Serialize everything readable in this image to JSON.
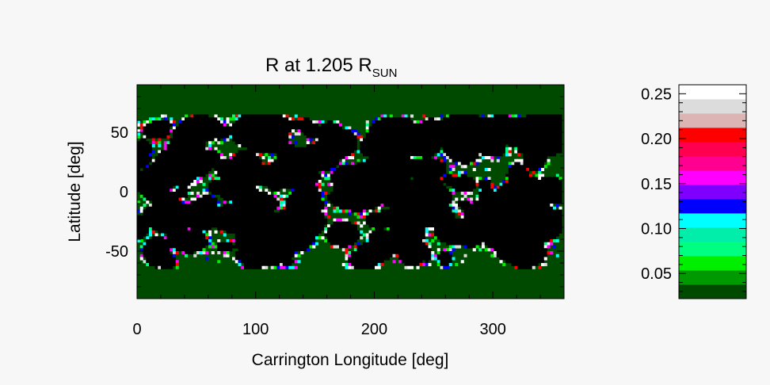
{
  "chart_data": [
    {
      "type": "heatmap",
      "title": "R  at 1.205 R",
      "title_subscript": "SUN",
      "xlabel": "Carrington Longitude [deg]",
      "ylabel": "Latitude [deg]",
      "xlim": [
        0,
        360
      ],
      "ylim": [
        -90,
        90
      ],
      "xticks": [
        {
          "v": 0,
          "label": "0"
        },
        {
          "v": 100,
          "label": "100"
        },
        {
          "v": 200,
          "label": "200"
        },
        {
          "v": 300,
          "label": "300"
        }
      ],
      "yticks": [
        {
          "v": 50,
          "label": "50"
        },
        {
          "v": 0,
          "label": "0"
        },
        {
          "v": -50,
          "label": "-50"
        }
      ],
      "background_color": "#004a00",
      "hole_color": "#000000",
      "grid": false
    },
    {
      "type": "colorbar",
      "range": [
        0.022,
        0.26
      ],
      "ticks": [
        {
          "v": 0.05,
          "label": "0.05"
        },
        {
          "v": 0.1,
          "label": "0.10"
        },
        {
          "v": 0.15,
          "label": "0.15"
        },
        {
          "v": 0.2,
          "label": "0.20"
        },
        {
          "v": 0.25,
          "label": "0.25"
        }
      ],
      "colors": [
        "#004a00",
        "#009900",
        "#00ee00",
        "#00ff80",
        "#00eeaa",
        "#00ffff",
        "#0000ff",
        "#8000ff",
        "#ff00ff",
        "#ff0090",
        "#ff0050",
        "#ff0000",
        "#dcb4b4",
        "#dcdcdc",
        "#ffffff"
      ]
    }
  ]
}
